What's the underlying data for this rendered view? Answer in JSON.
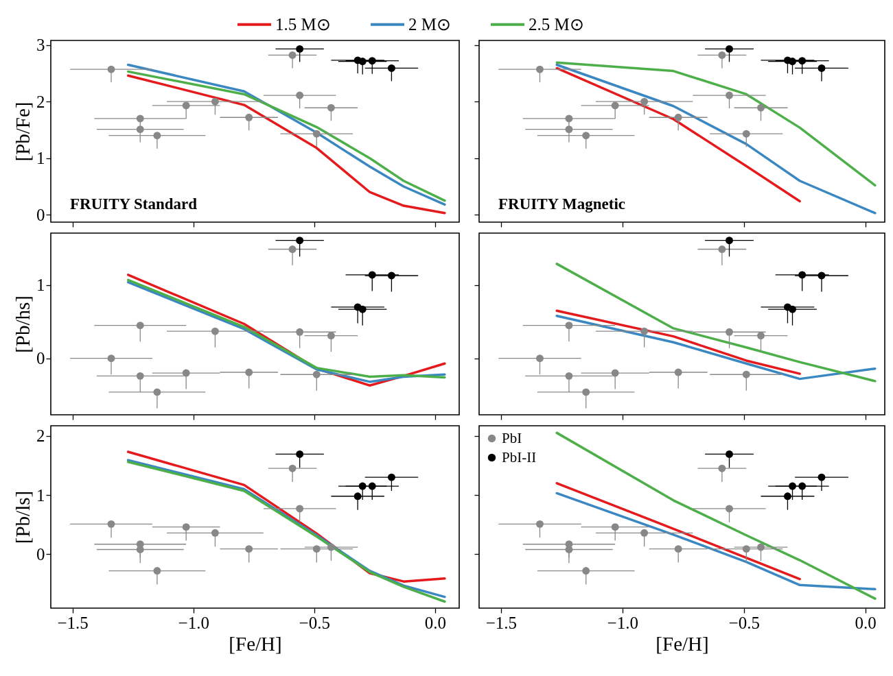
{
  "chart_data": [
    {
      "type": "line",
      "ylabel": "[Pb/Fe]",
      "annotations": [
        "FRUITY Standard"
      ],
      "legend": "top",
      "tick_labels": "y",
      "xlim": [
        -1.59,
        0.1
      ],
      "ylim": [
        -0.13,
        3.08
      ],
      "xticks": [
        -1.5,
        -1,
        -0.5,
        0
      ],
      "yticks": [
        0,
        1,
        2,
        3
      ],
      "series": [
        {
          "name": "1.5 M⊙",
          "color": "#e41a1c",
          "x": [
            -1.27,
            -0.79,
            -0.49,
            -0.27,
            -0.13,
            0.04
          ],
          "values": [
            2.46,
            1.94,
            1.18,
            0.4,
            0.16,
            0.03
          ]
        },
        {
          "name": "2 M⊙",
          "color": "#3a87c2",
          "x": [
            -1.27,
            -0.79,
            -0.49,
            -0.27,
            -0.13,
            0.04
          ],
          "values": [
            2.65,
            2.18,
            1.45,
            0.85,
            0.5,
            0.18
          ]
        },
        {
          "name": "2.5 M⊙",
          "color": "#4daf4a",
          "x": [
            -1.27,
            -0.79,
            -0.49,
            -0.27,
            -0.13,
            0.04
          ],
          "values": [
            2.53,
            2.13,
            1.55,
            1.0,
            0.6,
            0.25
          ]
        },
        {
          "type": "scatter",
          "marker": "circle",
          "color": "#888888",
          "x": [
            -1.34,
            -1.22,
            -1.22,
            -1.15,
            -1.03,
            -0.91,
            -0.77,
            -0.59,
            -0.56,
            -0.49,
            -0.43
          ],
          "values": [
            2.57,
            1.7,
            1.51,
            1.4,
            1.93,
            2.0,
            1.72,
            2.82,
            2.11,
            1.43,
            1.89
          ],
          "xerrors": [
            0.17,
            0.19,
            0.18,
            0.2,
            0.14,
            0.2,
            0.12,
            0.1,
            0.15,
            0.15,
            0.11
          ],
          "errors": [
            [
              2.34,
              2.57
            ],
            [
              1.47,
              1.7
            ],
            [
              1.28,
              1.51
            ],
            [
              1.17,
              1.4
            ],
            [
              1.7,
              1.93
            ],
            [
              1.77,
              2.0
            ],
            [
              1.49,
              1.72
            ],
            [
              2.59,
              2.82
            ],
            [
              1.88,
              2.11
            ],
            [
              1.2,
              1.43
            ],
            [
              1.66,
              1.89
            ]
          ]
        },
        {
          "type": "scatter",
          "marker": "circle",
          "color": "#000000",
          "x": [
            -0.56,
            -0.32,
            -0.3,
            -0.26,
            -0.18
          ],
          "values": [
            2.93,
            2.73,
            2.71,
            2.72,
            2.59
          ],
          "xerrors": [
            0.1,
            0.11,
            0.1,
            0.11,
            0.11
          ],
          "errors": [
            [
              2.7,
              2.93
            ],
            [
              2.5,
              2.73
            ],
            [
              2.48,
              2.71
            ],
            [
              2.49,
              2.72
            ],
            [
              2.36,
              2.59
            ]
          ]
        }
      ]
    },
    {
      "type": "line",
      "annotations": [
        "FRUITY Magnetic"
      ],
      "tick_labels": false,
      "xlim": [
        -1.59,
        0.08
      ],
      "ylim": [
        -0.13,
        3.08
      ],
      "xticks": [
        -1.5,
        -1,
        -0.5,
        0
      ],
      "yticks": [
        0,
        1,
        2,
        3
      ],
      "series": [
        {
          "color": "#e41a1c",
          "x": [
            -1.27,
            -0.79,
            -0.49,
            -0.27
          ],
          "values": [
            2.59,
            1.69,
            0.86,
            0.24
          ]
        },
        {
          "color": "#3a87c2",
          "x": [
            -1.27,
            -0.79,
            -0.49,
            -0.27,
            0.04
          ],
          "values": [
            2.65,
            1.92,
            1.25,
            0.6,
            0.03
          ]
        },
        {
          "color": "#4daf4a",
          "x": [
            -1.27,
            -0.79,
            -0.49,
            -0.27,
            0.04
          ],
          "values": [
            2.69,
            2.54,
            2.13,
            1.54,
            0.52
          ]
        },
        {
          "type": "scatter",
          "marker": "circle",
          "color": "#888888",
          "x": [
            -1.34,
            -1.22,
            -1.22,
            -1.15,
            -1.03,
            -0.91,
            -0.77,
            -0.59,
            -0.56,
            -0.49,
            -0.43
          ],
          "values": [
            2.57,
            1.7,
            1.51,
            1.4,
            1.93,
            2.0,
            1.72,
            2.82,
            2.11,
            1.43,
            1.89
          ],
          "xerrors": [
            0.17,
            0.19,
            0.18,
            0.2,
            0.14,
            0.2,
            0.12,
            0.1,
            0.15,
            0.15,
            0.11
          ],
          "errors": [
            [
              2.34,
              2.57
            ],
            [
              1.47,
              1.7
            ],
            [
              1.28,
              1.51
            ],
            [
              1.17,
              1.4
            ],
            [
              1.7,
              1.93
            ],
            [
              1.77,
              2.0
            ],
            [
              1.49,
              1.72
            ],
            [
              2.59,
              2.82
            ],
            [
              1.88,
              2.11
            ],
            [
              1.2,
              1.43
            ],
            [
              1.66,
              1.89
            ]
          ]
        },
        {
          "type": "scatter",
          "marker": "circle",
          "color": "#000000",
          "x": [
            -0.56,
            -0.32,
            -0.3,
            -0.26,
            -0.18
          ],
          "values": [
            2.93,
            2.73,
            2.71,
            2.72,
            2.59
          ],
          "xerrors": [
            0.1,
            0.11,
            0.1,
            0.11,
            0.11
          ],
          "errors": [
            [
              2.7,
              2.93
            ],
            [
              2.5,
              2.73
            ],
            [
              2.48,
              2.71
            ],
            [
              2.49,
              2.72
            ],
            [
              2.36,
              2.59
            ]
          ]
        }
      ]
    },
    {
      "type": "line",
      "ylabel": "[Pb/hs]",
      "tick_labels": "y",
      "xlim": [
        -1.59,
        0.1
      ],
      "ylim": [
        -0.77,
        1.71
      ],
      "xticks": [
        -1.5,
        -1,
        -0.5,
        0
      ],
      "yticks": [
        0,
        1
      ],
      "series": [
        {
          "color": "#e41a1c",
          "x": [
            -1.27,
            -0.79,
            -0.49,
            -0.27,
            -0.13,
            0.04
          ],
          "values": [
            1.14,
            0.47,
            -0.14,
            -0.37,
            -0.24,
            -0.07
          ]
        },
        {
          "color": "#3a87c2",
          "x": [
            -1.27,
            -0.79,
            -0.49,
            -0.27,
            -0.13,
            0.04
          ],
          "values": [
            1.04,
            0.4,
            -0.15,
            -0.32,
            -0.25,
            -0.22
          ]
        },
        {
          "color": "#4daf4a",
          "x": [
            -1.27,
            -0.79,
            -0.49,
            -0.27,
            -0.13,
            0.04
          ],
          "values": [
            1.07,
            0.43,
            -0.13,
            -0.25,
            -0.23,
            -0.26
          ]
        },
        {
          "type": "scatter",
          "marker": "circle",
          "color": "#888888",
          "x": [
            -1.34,
            -1.22,
            -1.22,
            -1.15,
            -1.03,
            -0.91,
            -0.77,
            -0.59,
            -0.56,
            -0.49,
            -0.43
          ],
          "values": [
            0.0,
            0.45,
            -0.24,
            -0.46,
            -0.2,
            0.37,
            -0.19,
            1.49,
            0.36,
            -0.22,
            0.31
          ],
          "xerrors": [
            0.17,
            0.19,
            0.18,
            0.2,
            0.14,
            0.2,
            0.12,
            0.1,
            0.15,
            0.15,
            0.11
          ],
          "errors": [
            [
              -0.22,
              0.0
            ],
            [
              0.23,
              0.45
            ],
            [
              -0.46,
              -0.24
            ],
            [
              -0.68,
              -0.46
            ],
            [
              -0.42,
              -0.2
            ],
            [
              0.15,
              0.37
            ],
            [
              -0.41,
              -0.19
            ],
            [
              1.27,
              1.49
            ],
            [
              0.14,
              0.36
            ],
            [
              -0.44,
              -0.22
            ],
            [
              0.09,
              0.31
            ]
          ]
        },
        {
          "type": "scatter",
          "marker": "circle",
          "color": "#000000",
          "x": [
            -0.56,
            -0.32,
            -0.3,
            -0.26,
            -0.18
          ],
          "values": [
            1.61,
            0.7,
            0.67,
            1.14,
            1.13
          ],
          "xerrors": [
            0.1,
            0.11,
            0.1,
            0.11,
            0.11
          ],
          "errors": [
            [
              1.39,
              1.61
            ],
            [
              0.48,
              0.7
            ],
            [
              0.45,
              0.67
            ],
            [
              0.92,
              1.14
            ],
            [
              0.91,
              1.13
            ]
          ]
        }
      ]
    },
    {
      "type": "line",
      "tick_labels": false,
      "xlim": [
        -1.59,
        0.08
      ],
      "ylim": [
        -0.77,
        1.71
      ],
      "xticks": [
        -1.5,
        -1,
        -0.5,
        0
      ],
      "yticks": [
        0,
        1
      ],
      "series": [
        {
          "color": "#e41a1c",
          "x": [
            -1.27,
            -0.79,
            -0.49,
            -0.27
          ],
          "values": [
            0.65,
            0.3,
            -0.03,
            -0.21
          ]
        },
        {
          "color": "#3a87c2",
          "x": [
            -1.27,
            -0.79,
            -0.49,
            -0.27,
            0.04
          ],
          "values": [
            0.58,
            0.22,
            -0.07,
            -0.28,
            -0.14
          ]
        },
        {
          "color": "#4daf4a",
          "x": [
            -1.27,
            -0.79,
            -0.49,
            -0.27,
            0.04
          ],
          "values": [
            1.29,
            0.41,
            0.15,
            -0.05,
            -0.31
          ]
        },
        {
          "type": "scatter",
          "marker": "circle",
          "color": "#888888",
          "x": [
            -1.34,
            -1.22,
            -1.22,
            -1.15,
            -1.03,
            -0.91,
            -0.77,
            -0.59,
            -0.56,
            -0.49,
            -0.43
          ],
          "values": [
            0.0,
            0.45,
            -0.24,
            -0.46,
            -0.2,
            0.37,
            -0.19,
            1.49,
            0.36,
            -0.22,
            0.31
          ],
          "xerrors": [
            0.17,
            0.19,
            0.18,
            0.2,
            0.14,
            0.2,
            0.12,
            0.1,
            0.15,
            0.15,
            0.11
          ],
          "errors": [
            [
              -0.22,
              0.0
            ],
            [
              0.23,
              0.45
            ],
            [
              -0.46,
              -0.24
            ],
            [
              -0.68,
              -0.46
            ],
            [
              -0.42,
              -0.2
            ],
            [
              0.15,
              0.37
            ],
            [
              -0.41,
              -0.19
            ],
            [
              1.27,
              1.49
            ],
            [
              0.14,
              0.36
            ],
            [
              -0.44,
              -0.22
            ],
            [
              0.09,
              0.31
            ]
          ]
        },
        {
          "type": "scatter",
          "marker": "circle",
          "color": "#000000",
          "x": [
            -0.56,
            -0.32,
            -0.3,
            -0.26,
            -0.18
          ],
          "values": [
            1.61,
            0.7,
            0.67,
            1.14,
            1.13
          ],
          "xerrors": [
            0.1,
            0.11,
            0.1,
            0.11,
            0.11
          ],
          "errors": [
            [
              1.39,
              1.61
            ],
            [
              0.48,
              0.7
            ],
            [
              0.45,
              0.67
            ],
            [
              0.92,
              1.14
            ],
            [
              0.91,
              1.13
            ]
          ]
        }
      ]
    },
    {
      "type": "line",
      "xlabel": "[Fe/H]",
      "ylabel": "[Pb/ls]",
      "xlim": [
        -1.59,
        0.1
      ],
      "ylim": [
        -0.91,
        2.17
      ],
      "xticks": [
        {
          "value": -1.5,
          "label": "−1.5"
        },
        {
          "value": -1,
          "label": "−1.0"
        },
        {
          "value": -0.5,
          "label": "−0.5"
        },
        {
          "value": 0,
          "label": "0.0"
        }
      ],
      "yticks": [
        0,
        1,
        2
      ],
      "series": [
        {
          "color": "#e41a1c",
          "x": [
            -1.27,
            -0.79,
            -0.49,
            -0.27,
            -0.13,
            0.04
          ],
          "values": [
            1.73,
            1.17,
            0.35,
            -0.32,
            -0.46,
            -0.41
          ]
        },
        {
          "color": "#3a87c2",
          "x": [
            -1.27,
            -0.79,
            -0.49,
            -0.27,
            -0.13,
            0.04
          ],
          "values": [
            1.59,
            1.1,
            0.32,
            -0.28,
            -0.53,
            -0.72
          ]
        },
        {
          "color": "#4daf4a",
          "x": [
            -1.27,
            -0.79,
            -0.49,
            -0.27,
            -0.13,
            0.04
          ],
          "values": [
            1.56,
            1.07,
            0.3,
            -0.3,
            -0.55,
            -0.8
          ]
        },
        {
          "type": "scatter",
          "marker": "circle",
          "color": "#888888",
          "x": [
            -1.34,
            -1.22,
            -1.22,
            -1.15,
            -1.03,
            -0.91,
            -0.77,
            -0.59,
            -0.56,
            -0.49,
            -0.43
          ],
          "values": [
            0.51,
            0.17,
            0.08,
            -0.28,
            0.46,
            0.36,
            0.09,
            1.45,
            0.77,
            0.09,
            0.12
          ],
          "xerrors": [
            0.17,
            0.19,
            0.18,
            0.2,
            0.14,
            0.2,
            0.12,
            0.1,
            0.15,
            0.15,
            0.11
          ],
          "errors": [
            [
              0.28,
              0.51
            ],
            [
              -0.06,
              0.17
            ],
            [
              -0.15,
              0.08
            ],
            [
              -0.51,
              -0.28
            ],
            [
              0.23,
              0.46
            ],
            [
              0.13,
              0.36
            ],
            [
              -0.14,
              0.09
            ],
            [
              1.22,
              1.45
            ],
            [
              0.54,
              0.77
            ],
            [
              -0.14,
              0.09
            ],
            [
              -0.11,
              0.12
            ]
          ]
        },
        {
          "type": "scatter",
          "marker": "circle",
          "color": "#000000",
          "x": [
            -0.56,
            -0.32,
            -0.3,
            -0.26,
            -0.18
          ],
          "values": [
            1.69,
            0.98,
            1.15,
            1.15,
            1.3
          ],
          "xerrors": [
            0.1,
            0.11,
            0.1,
            0.11,
            0.11
          ],
          "errors": [
            [
              1.46,
              1.69
            ],
            [
              0.75,
              0.98
            ],
            [
              0.92,
              1.15
            ],
            [
              0.92,
              1.15
            ],
            [
              1.07,
              1.3
            ]
          ]
        }
      ]
    },
    {
      "type": "line",
      "xlabel": "[Fe/H]",
      "legend": "top left",
      "tick_labels": "x",
      "xlim": [
        -1.59,
        0.08
      ],
      "ylim": [
        -0.91,
        2.17
      ],
      "xticks": [
        {
          "value": -1.5,
          "label": "−1.5"
        },
        {
          "value": -1,
          "label": "−1.0"
        },
        {
          "value": -0.5,
          "label": "−0.5"
        },
        {
          "value": 0,
          "label": "0.0"
        }
      ],
      "yticks": [
        0,
        1,
        2
      ],
      "series": [
        {
          "color": "#e41a1c",
          "x": [
            -1.27,
            -0.79,
            -0.49,
            -0.27
          ],
          "values": [
            1.2,
            0.43,
            -0.06,
            -0.42
          ]
        },
        {
          "color": "#3a87c2",
          "x": [
            -1.27,
            -0.79,
            -0.49,
            -0.27,
            0.04
          ],
          "values": [
            1.03,
            0.33,
            -0.13,
            -0.52,
            -0.59
          ]
        },
        {
          "color": "#4daf4a",
          "x": [
            -1.27,
            -0.79,
            -0.49,
            -0.27,
            0.04
          ],
          "values": [
            2.05,
            0.91,
            0.32,
            -0.1,
            -0.75
          ]
        },
        {
          "type": "scatter",
          "name": "PbI",
          "marker": "circle",
          "color": "#888888",
          "x": [
            -1.34,
            -1.22,
            -1.22,
            -1.15,
            -1.03,
            -0.91,
            -0.77,
            -0.59,
            -0.56,
            -0.49,
            -0.43
          ],
          "values": [
            0.51,
            0.17,
            0.08,
            -0.28,
            0.46,
            0.36,
            0.09,
            1.45,
            0.77,
            0.09,
            0.12
          ],
          "xerrors": [
            0.17,
            0.19,
            0.18,
            0.2,
            0.14,
            0.2,
            0.12,
            0.1,
            0.15,
            0.15,
            0.11
          ],
          "errors": [
            [
              0.28,
              0.51
            ],
            [
              -0.06,
              0.17
            ],
            [
              -0.15,
              0.08
            ],
            [
              -0.51,
              -0.28
            ],
            [
              0.23,
              0.46
            ],
            [
              0.13,
              0.36
            ],
            [
              -0.14,
              0.09
            ],
            [
              1.22,
              1.45
            ],
            [
              0.54,
              0.77
            ],
            [
              -0.14,
              0.09
            ],
            [
              -0.11,
              0.12
            ]
          ]
        },
        {
          "type": "scatter",
          "name": "PbI-II",
          "marker": "circle",
          "color": "#000000",
          "x": [
            -0.56,
            -0.32,
            -0.3,
            -0.26,
            -0.18
          ],
          "values": [
            1.69,
            0.98,
            1.15,
            1.15,
            1.3
          ],
          "xerrors": [
            0.1,
            0.11,
            0.1,
            0.11,
            0.11
          ],
          "errors": [
            [
              1.46,
              1.69
            ],
            [
              0.75,
              0.98
            ],
            [
              0.92,
              1.15
            ],
            [
              0.92,
              1.15
            ],
            [
              1.07,
              1.3
            ]
          ]
        }
      ]
    }
  ]
}
